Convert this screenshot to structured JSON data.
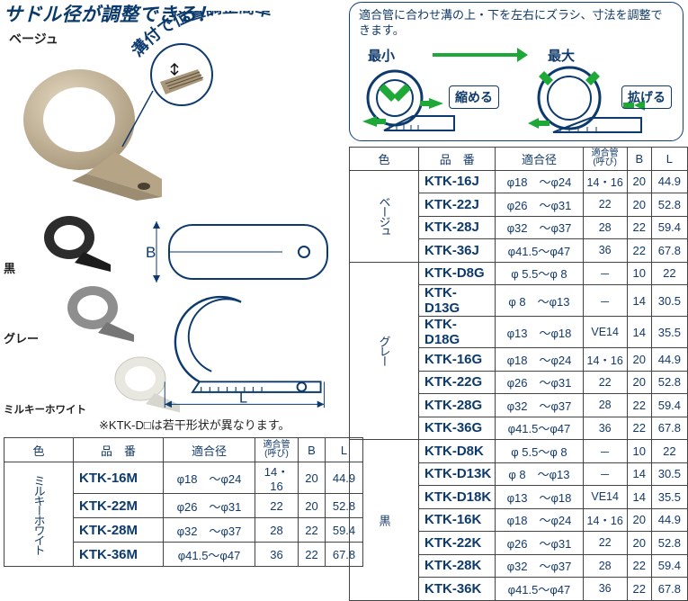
{
  "headline": "サドル径が調整できる！",
  "color_labels": {
    "beige": "ベージュ",
    "black": "黒",
    "grey": "グレー",
    "milky": "ミルキーホワイト"
  },
  "arc_text": "溝付で位置調整簡単",
  "dim_labels": {
    "B": "B",
    "L": "L"
  },
  "note": "※KTK-D□は若干形状が異なります。",
  "table_headers": {
    "color": "色",
    "part": "品　番",
    "dia": "適合径",
    "fit_line1": "適合管",
    "fit_line2": "(呼び)",
    "B": "B",
    "L": "L"
  },
  "left_table": {
    "color_label": "ミルキーホワイト",
    "rows": [
      {
        "part": "KTK-16M",
        "dia": "φ18　～φ24",
        "fit": "14・16",
        "B": "20",
        "L": "44.9"
      },
      {
        "part": "KTK-22M",
        "dia": "φ26　～φ31",
        "fit": "22",
        "B": "20",
        "L": "52.8"
      },
      {
        "part": "KTK-28M",
        "dia": "φ32　～φ37",
        "fit": "28",
        "B": "22",
        "L": "59.4"
      },
      {
        "part": "KTK-36M",
        "dia": "φ41.5～φ47",
        "fit": "36",
        "B": "22",
        "L": "67.8"
      }
    ]
  },
  "adjust_box": {
    "caption": "適合管に合わせ溝の上・下を左右にズラシ、寸法を調整できます。",
    "min": "最小",
    "max": "最大",
    "shrink": "縮める",
    "expand": "拡げる"
  },
  "right_table": {
    "groups": [
      {
        "color_label": "ベージュ",
        "rows": [
          {
            "part": "KTK-16J",
            "dia": "φ18　～φ24",
            "fit": "14・16",
            "B": "20",
            "L": "44.9"
          },
          {
            "part": "KTK-22J",
            "dia": "φ26　～φ31",
            "fit": "22",
            "B": "20",
            "L": "52.8"
          },
          {
            "part": "KTK-28J",
            "dia": "φ32　～φ37",
            "fit": "28",
            "B": "22",
            "L": "59.4"
          },
          {
            "part": "KTK-36J",
            "dia": "φ41.5～φ47",
            "fit": "36",
            "B": "22",
            "L": "67.8"
          }
        ]
      },
      {
        "color_label": "グレー",
        "rows": [
          {
            "part": "KTK-D8G",
            "dia": "φ 5.5～φ 8",
            "fit": "－",
            "B": "10",
            "L": "22"
          },
          {
            "part": "KTK-D13G",
            "dia": "φ 8　～φ13",
            "fit": "－",
            "B": "14",
            "L": "30.5"
          },
          {
            "part": "KTK-D18G",
            "dia": "φ13　～φ18",
            "fit": "VE14",
            "B": "14",
            "L": "35.5"
          },
          {
            "part": "KTK-16G",
            "dia": "φ18　～φ24",
            "fit": "14・16",
            "B": "20",
            "L": "44.9"
          },
          {
            "part": "KTK-22G",
            "dia": "φ26　～φ31",
            "fit": "22",
            "B": "20",
            "L": "52.8"
          },
          {
            "part": "KTK-28G",
            "dia": "φ32　～φ37",
            "fit": "28",
            "B": "22",
            "L": "59.4"
          },
          {
            "part": "KTK-36G",
            "dia": "φ41.5～φ47",
            "fit": "36",
            "B": "22",
            "L": "67.8"
          }
        ]
      },
      {
        "color_label": "黒",
        "rows": [
          {
            "part": "KTK-D8K",
            "dia": "φ 5.5～φ 8",
            "fit": "－",
            "B": "10",
            "L": "22"
          },
          {
            "part": "KTK-D13K",
            "dia": "φ 8　～φ13",
            "fit": "－",
            "B": "14",
            "L": "30.5"
          },
          {
            "part": "KTK-D18K",
            "dia": "φ13　～φ18",
            "fit": "VE14",
            "B": "14",
            "L": "35.5"
          },
          {
            "part": "KTK-16K",
            "dia": "φ18　～φ24",
            "fit": "14・16",
            "B": "20",
            "L": "44.9"
          },
          {
            "part": "KTK-22K",
            "dia": "φ26　～φ31",
            "fit": "22",
            "B": "20",
            "L": "52.8"
          },
          {
            "part": "KTK-28K",
            "dia": "φ32　～φ37",
            "fit": "28",
            "B": "22",
            "L": "59.4"
          },
          {
            "part": "KTK-36K",
            "dia": "φ41.5～φ47",
            "fit": "36",
            "B": "22",
            "L": "67.8"
          }
        ]
      }
    ]
  },
  "colors": {
    "brand_blue": "#0d3a6e",
    "beige": "#c6b596",
    "black": "#2c2c2c",
    "grey": "#8e8e8e",
    "milky": "#e8e7e0",
    "green": "#1ea838"
  }
}
